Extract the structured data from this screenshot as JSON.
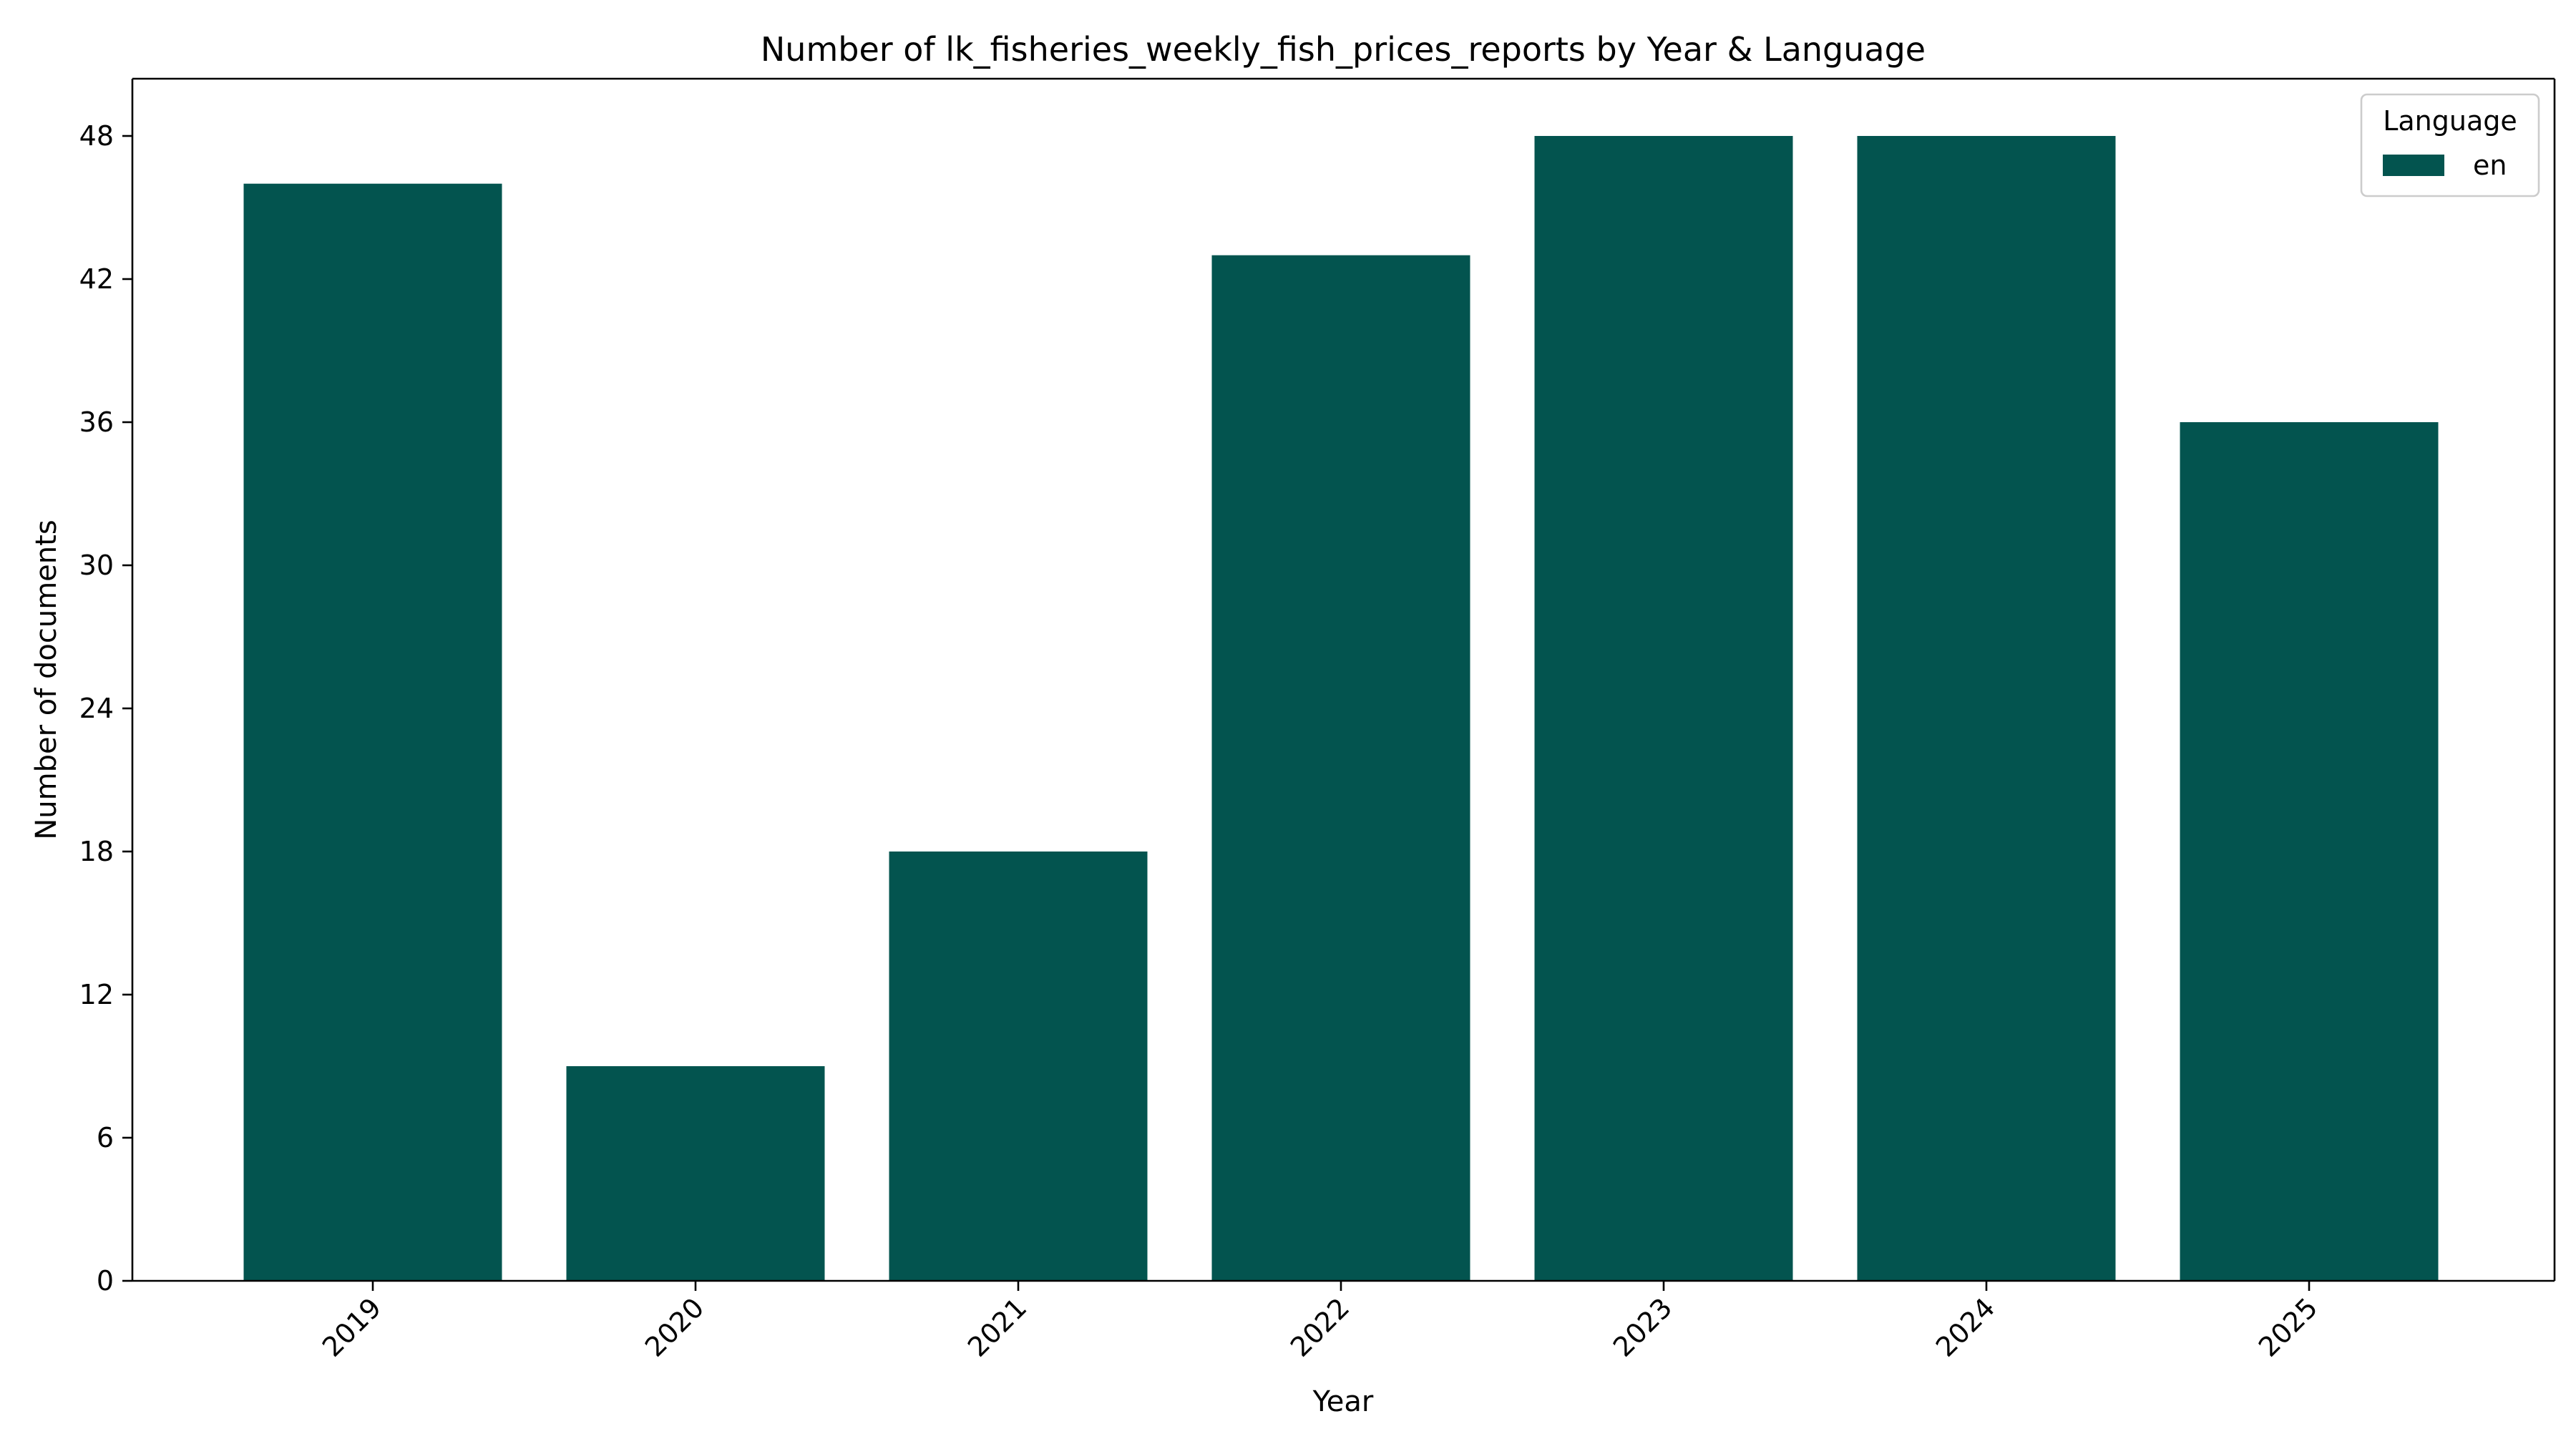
{
  "chart_data": {
    "type": "bar",
    "title": "Number of lk_fisheries_weekly_fish_prices_reports by Year & Language",
    "xlabel": "Year",
    "ylabel": "Number of documents",
    "categories": [
      "2019",
      "2020",
      "2021",
      "2022",
      "2023",
      "2024",
      "2025"
    ],
    "series": [
      {
        "name": "en",
        "values": [
          46,
          9,
          18,
          43,
          48,
          48,
          36
        ],
        "color": "#03544f"
      }
    ],
    "ylim": [
      0,
      50.4
    ],
    "yticks": [
      0,
      6,
      12,
      18,
      24,
      30,
      36,
      42,
      48
    ],
    "grid": false,
    "legend": {
      "title": "Language",
      "placement": "top-right"
    }
  }
}
